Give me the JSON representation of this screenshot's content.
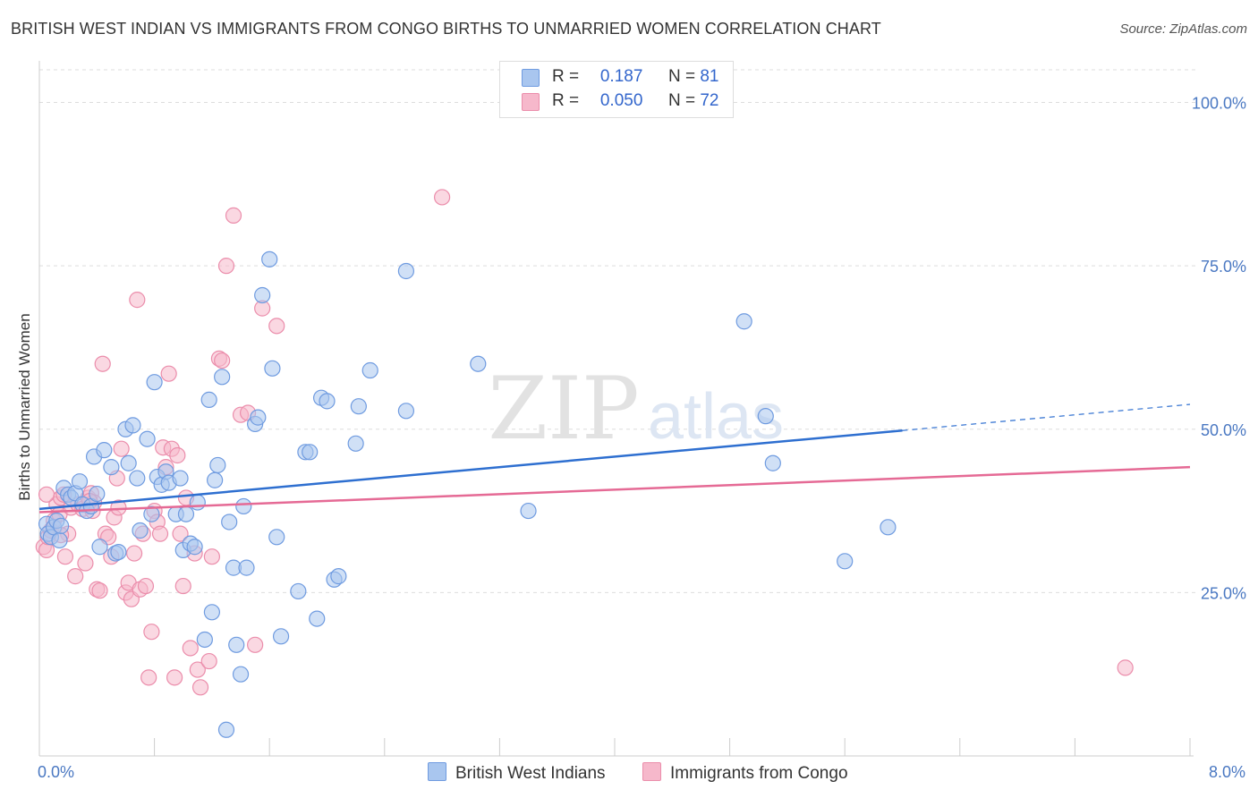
{
  "title": "BRITISH WEST INDIAN VS IMMIGRANTS FROM CONGO BIRTHS TO UNMARRIED WOMEN CORRELATION CHART",
  "source": "Source: ZipAtlas.com",
  "watermark": {
    "zip": "ZIP",
    "atlas": "atlas"
  },
  "legend": {
    "r_label": "R =",
    "n_label": "N =",
    "rows": [
      {
        "r": "0.187",
        "n": "81"
      },
      {
        "r": "0.050",
        "n": "72"
      }
    ]
  },
  "colors": {
    "blue_fill": "#a9c6ef",
    "blue_stroke": "#6f9be0",
    "blue_line": "#2e6fd0",
    "pink_fill": "#f6b8cb",
    "pink_stroke": "#eb8dab",
    "pink_line": "#e56a95",
    "axis_label": "#4a78c2",
    "grid": "#dddddd"
  },
  "chart_data": {
    "type": "scatter",
    "title": "BRITISH WEST INDIAN VS IMMIGRANTS FROM CONGO BIRTHS TO UNMARRIED WOMEN CORRELATION CHART",
    "xlabel": "",
    "ylabel": "Births to Unmarried Women",
    "xlim": [
      0,
      8
    ],
    "ylim": [
      0,
      105
    ],
    "x_tick_labels": [
      "0.0%",
      "8.0%"
    ],
    "y_ticks": [
      25,
      50,
      75,
      100
    ],
    "y_tick_labels": [
      "25.0%",
      "50.0%",
      "75.0%",
      "100.0%"
    ],
    "grid": true,
    "legend_position": "bottom",
    "series": [
      {
        "name": "British West Indians",
        "color": "#a9c6ef",
        "r": 0.187,
        "n": 81,
        "trend": {
          "x": [
            0,
            6
          ],
          "y": [
            37.8,
            49.8
          ],
          "dashed_to": [
            8,
            53.8
          ]
        },
        "points": [
          [
            0.05,
            35.5
          ],
          [
            0.06,
            34.0
          ],
          [
            0.08,
            33.5
          ],
          [
            0.1,
            35.0
          ],
          [
            0.12,
            36.0
          ],
          [
            0.14,
            33.0
          ],
          [
            0.15,
            35.2
          ],
          [
            0.17,
            41.0
          ],
          [
            0.2,
            40.0
          ],
          [
            0.22,
            39.5
          ],
          [
            0.25,
            40.2
          ],
          [
            0.28,
            42.0
          ],
          [
            0.3,
            38.5
          ],
          [
            0.33,
            37.5
          ],
          [
            0.36,
            38.2
          ],
          [
            0.38,
            45.8
          ],
          [
            0.4,
            40.1
          ],
          [
            0.42,
            32.0
          ],
          [
            0.45,
            46.8
          ],
          [
            0.5,
            44.2
          ],
          [
            0.53,
            31.0
          ],
          [
            0.55,
            31.2
          ],
          [
            0.6,
            50.0
          ],
          [
            0.62,
            44.8
          ],
          [
            0.65,
            50.6
          ],
          [
            0.68,
            42.5
          ],
          [
            0.7,
            34.5
          ],
          [
            0.75,
            48.5
          ],
          [
            0.78,
            37.0
          ],
          [
            0.8,
            57.2
          ],
          [
            0.82,
            42.7
          ],
          [
            0.85,
            41.5
          ],
          [
            0.88,
            43.5
          ],
          [
            0.9,
            41.8
          ],
          [
            0.95,
            37.0
          ],
          [
            0.98,
            42.5
          ],
          [
            1.0,
            31.5
          ],
          [
            1.02,
            37.0
          ],
          [
            1.05,
            32.5
          ],
          [
            1.08,
            32.0
          ],
          [
            1.1,
            38.8
          ],
          [
            1.15,
            17.8
          ],
          [
            1.18,
            54.5
          ],
          [
            1.2,
            22.0
          ],
          [
            1.22,
            42.2
          ],
          [
            1.24,
            44.5
          ],
          [
            1.27,
            58.0
          ],
          [
            1.3,
            4.0
          ],
          [
            1.32,
            35.8
          ],
          [
            1.35,
            28.8
          ],
          [
            1.37,
            17.0
          ],
          [
            1.4,
            12.5
          ],
          [
            1.42,
            38.2
          ],
          [
            1.44,
            28.8
          ],
          [
            1.5,
            50.8
          ],
          [
            1.52,
            51.8
          ],
          [
            1.55,
            70.5
          ],
          [
            1.6,
            76.0
          ],
          [
            1.62,
            59.3
          ],
          [
            1.65,
            33.5
          ],
          [
            1.68,
            18.3
          ],
          [
            1.8,
            25.2
          ],
          [
            1.85,
            46.5
          ],
          [
            1.88,
            46.5
          ],
          [
            1.93,
            21.0
          ],
          [
            1.96,
            54.8
          ],
          [
            2.0,
            54.3
          ],
          [
            2.05,
            27.0
          ],
          [
            2.08,
            27.5
          ],
          [
            2.2,
            47.8
          ],
          [
            2.22,
            53.5
          ],
          [
            2.3,
            59.0
          ],
          [
            2.55,
            74.2
          ],
          [
            2.55,
            52.8
          ],
          [
            3.05,
            60.0
          ],
          [
            3.4,
            37.5
          ],
          [
            4.9,
            66.5
          ],
          [
            5.05,
            52.0
          ],
          [
            5.1,
            44.8
          ],
          [
            5.6,
            29.8
          ],
          [
            5.9,
            35.0
          ]
        ]
      },
      {
        "name": "Immigrants from Congo",
        "color": "#f6b8cb",
        "r": 0.05,
        "n": 72,
        "trend": {
          "x": [
            0,
            8
          ],
          "y": [
            37.3,
            44.2
          ]
        },
        "points": [
          [
            0.03,
            32.0
          ],
          [
            0.05,
            31.5
          ],
          [
            0.06,
            33.5
          ],
          [
            0.08,
            34.5
          ],
          [
            0.1,
            36.0
          ],
          [
            0.12,
            38.5
          ],
          [
            0.14,
            37.0
          ],
          [
            0.15,
            39.5
          ],
          [
            0.17,
            40.0
          ],
          [
            0.18,
            30.5
          ],
          [
            0.2,
            34.0
          ],
          [
            0.22,
            38.0
          ],
          [
            0.25,
            27.5
          ],
          [
            0.27,
            38.5
          ],
          [
            0.3,
            37.8
          ],
          [
            0.32,
            29.5
          ],
          [
            0.34,
            39.5
          ],
          [
            0.36,
            40.2
          ],
          [
            0.37,
            37.5
          ],
          [
            0.38,
            38.8
          ],
          [
            0.4,
            25.5
          ],
          [
            0.42,
            25.3
          ],
          [
            0.44,
            60.0
          ],
          [
            0.46,
            34.0
          ],
          [
            0.48,
            33.5
          ],
          [
            0.5,
            30.5
          ],
          [
            0.52,
            36.5
          ],
          [
            0.54,
            42.5
          ],
          [
            0.55,
            38.0
          ],
          [
            0.57,
            47.0
          ],
          [
            0.6,
            25.0
          ],
          [
            0.62,
            26.5
          ],
          [
            0.64,
            24.0
          ],
          [
            0.66,
            31.0
          ],
          [
            0.68,
            69.8
          ],
          [
            0.7,
            25.5
          ],
          [
            0.72,
            34.0
          ],
          [
            0.74,
            26.0
          ],
          [
            0.76,
            12.0
          ],
          [
            0.78,
            19.0
          ],
          [
            0.8,
            37.5
          ],
          [
            0.82,
            35.8
          ],
          [
            0.84,
            34.0
          ],
          [
            0.86,
            47.2
          ],
          [
            0.88,
            44.2
          ],
          [
            0.9,
            58.5
          ],
          [
            0.92,
            47.0
          ],
          [
            0.94,
            12.0
          ],
          [
            0.96,
            46.0
          ],
          [
            0.98,
            34.0
          ],
          [
            1.0,
            26.0
          ],
          [
            1.02,
            39.5
          ],
          [
            1.05,
            16.5
          ],
          [
            1.08,
            31.0
          ],
          [
            1.1,
            13.2
          ],
          [
            1.12,
            10.5
          ],
          [
            1.18,
            14.5
          ],
          [
            1.2,
            30.5
          ],
          [
            1.25,
            60.8
          ],
          [
            1.27,
            60.5
          ],
          [
            1.3,
            75.0
          ],
          [
            1.35,
            82.7
          ],
          [
            1.4,
            52.2
          ],
          [
            1.45,
            52.5
          ],
          [
            1.5,
            17.0
          ],
          [
            1.55,
            68.5
          ],
          [
            1.65,
            65.8
          ],
          [
            2.8,
            85.5
          ],
          [
            7.55,
            13.5
          ],
          [
            0.05,
            40.0
          ],
          [
            0.15,
            33.8
          ],
          [
            0.35,
            39.0
          ]
        ]
      }
    ]
  }
}
